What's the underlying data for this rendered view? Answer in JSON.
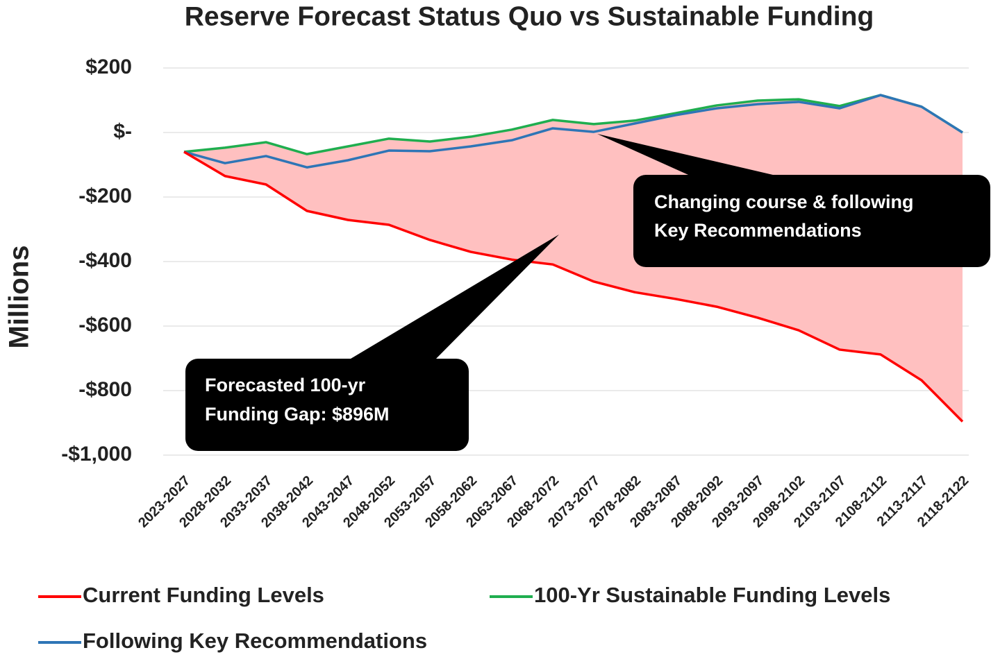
{
  "chart_data": {
    "type": "line",
    "title": "Reserve Forecast Status Quo vs Sustainable Funding",
    "y_label": "Millions",
    "categories": [
      "2023-2027",
      "2028-2032",
      "2033-2037",
      "2038-2042",
      "2043-2047",
      "2048-2052",
      "2053-2057",
      "2058-2062",
      "2063-2067",
      "2068-2072",
      "2073-2077",
      "2078-2082",
      "2083-2087",
      "2088-2092",
      "2093-2097",
      "2098-2102",
      "2103-2107",
      "2108-2112",
      "2113-2117",
      "2118-2122"
    ],
    "series": [
      {
        "name": "Current Funding Levels",
        "color": "#ff0000",
        "values": [
          -60,
          -135,
          -161,
          -243,
          -271,
          -286,
          -333,
          -370,
          -394,
          -409,
          -462,
          -495,
          -516,
          -540,
          -574,
          -613,
          -673,
          -688,
          -768,
          -896
        ]
      },
      {
        "name": "100-Yr Sustainable Funding Levels",
        "color": "#1fae4f",
        "values": [
          -60,
          -47,
          -30,
          -67,
          -43,
          -19,
          -28,
          -13,
          9,
          39,
          26,
          37,
          60,
          84,
          99,
          103,
          82,
          116,
          80,
          0
        ]
      },
      {
        "name": "Following Key Recommendations",
        "color": "#2e75b6",
        "values": [
          -60,
          -95,
          -73,
          -108,
          -86,
          -56,
          -58,
          -43,
          -24,
          13,
          2,
          28,
          54,
          75,
          88,
          95,
          75,
          116,
          80,
          0
        ]
      }
    ],
    "fill_color": "#ffc0c0",
    "ylim": [
      -1000,
      200
    ],
    "yticks": [
      {
        "value": 200,
        "label": "$200"
      },
      {
        "value": 0,
        "label": "$-"
      },
      {
        "value": -200,
        "label": "-$200"
      },
      {
        "value": -400,
        "label": "-$400"
      },
      {
        "value": -600,
        "label": "-$600"
      },
      {
        "value": -800,
        "label": "-$800"
      },
      {
        "value": -1000,
        "label": "-$1,000"
      }
    ],
    "grid": true,
    "legend": "bottom",
    "annotations": [
      {
        "lines": [
          "Changing course & following",
          "Key Recommendations"
        ]
      },
      {
        "lines": [
          "Forecasted 100-yr",
          "Funding Gap: $896M"
        ]
      }
    ]
  }
}
